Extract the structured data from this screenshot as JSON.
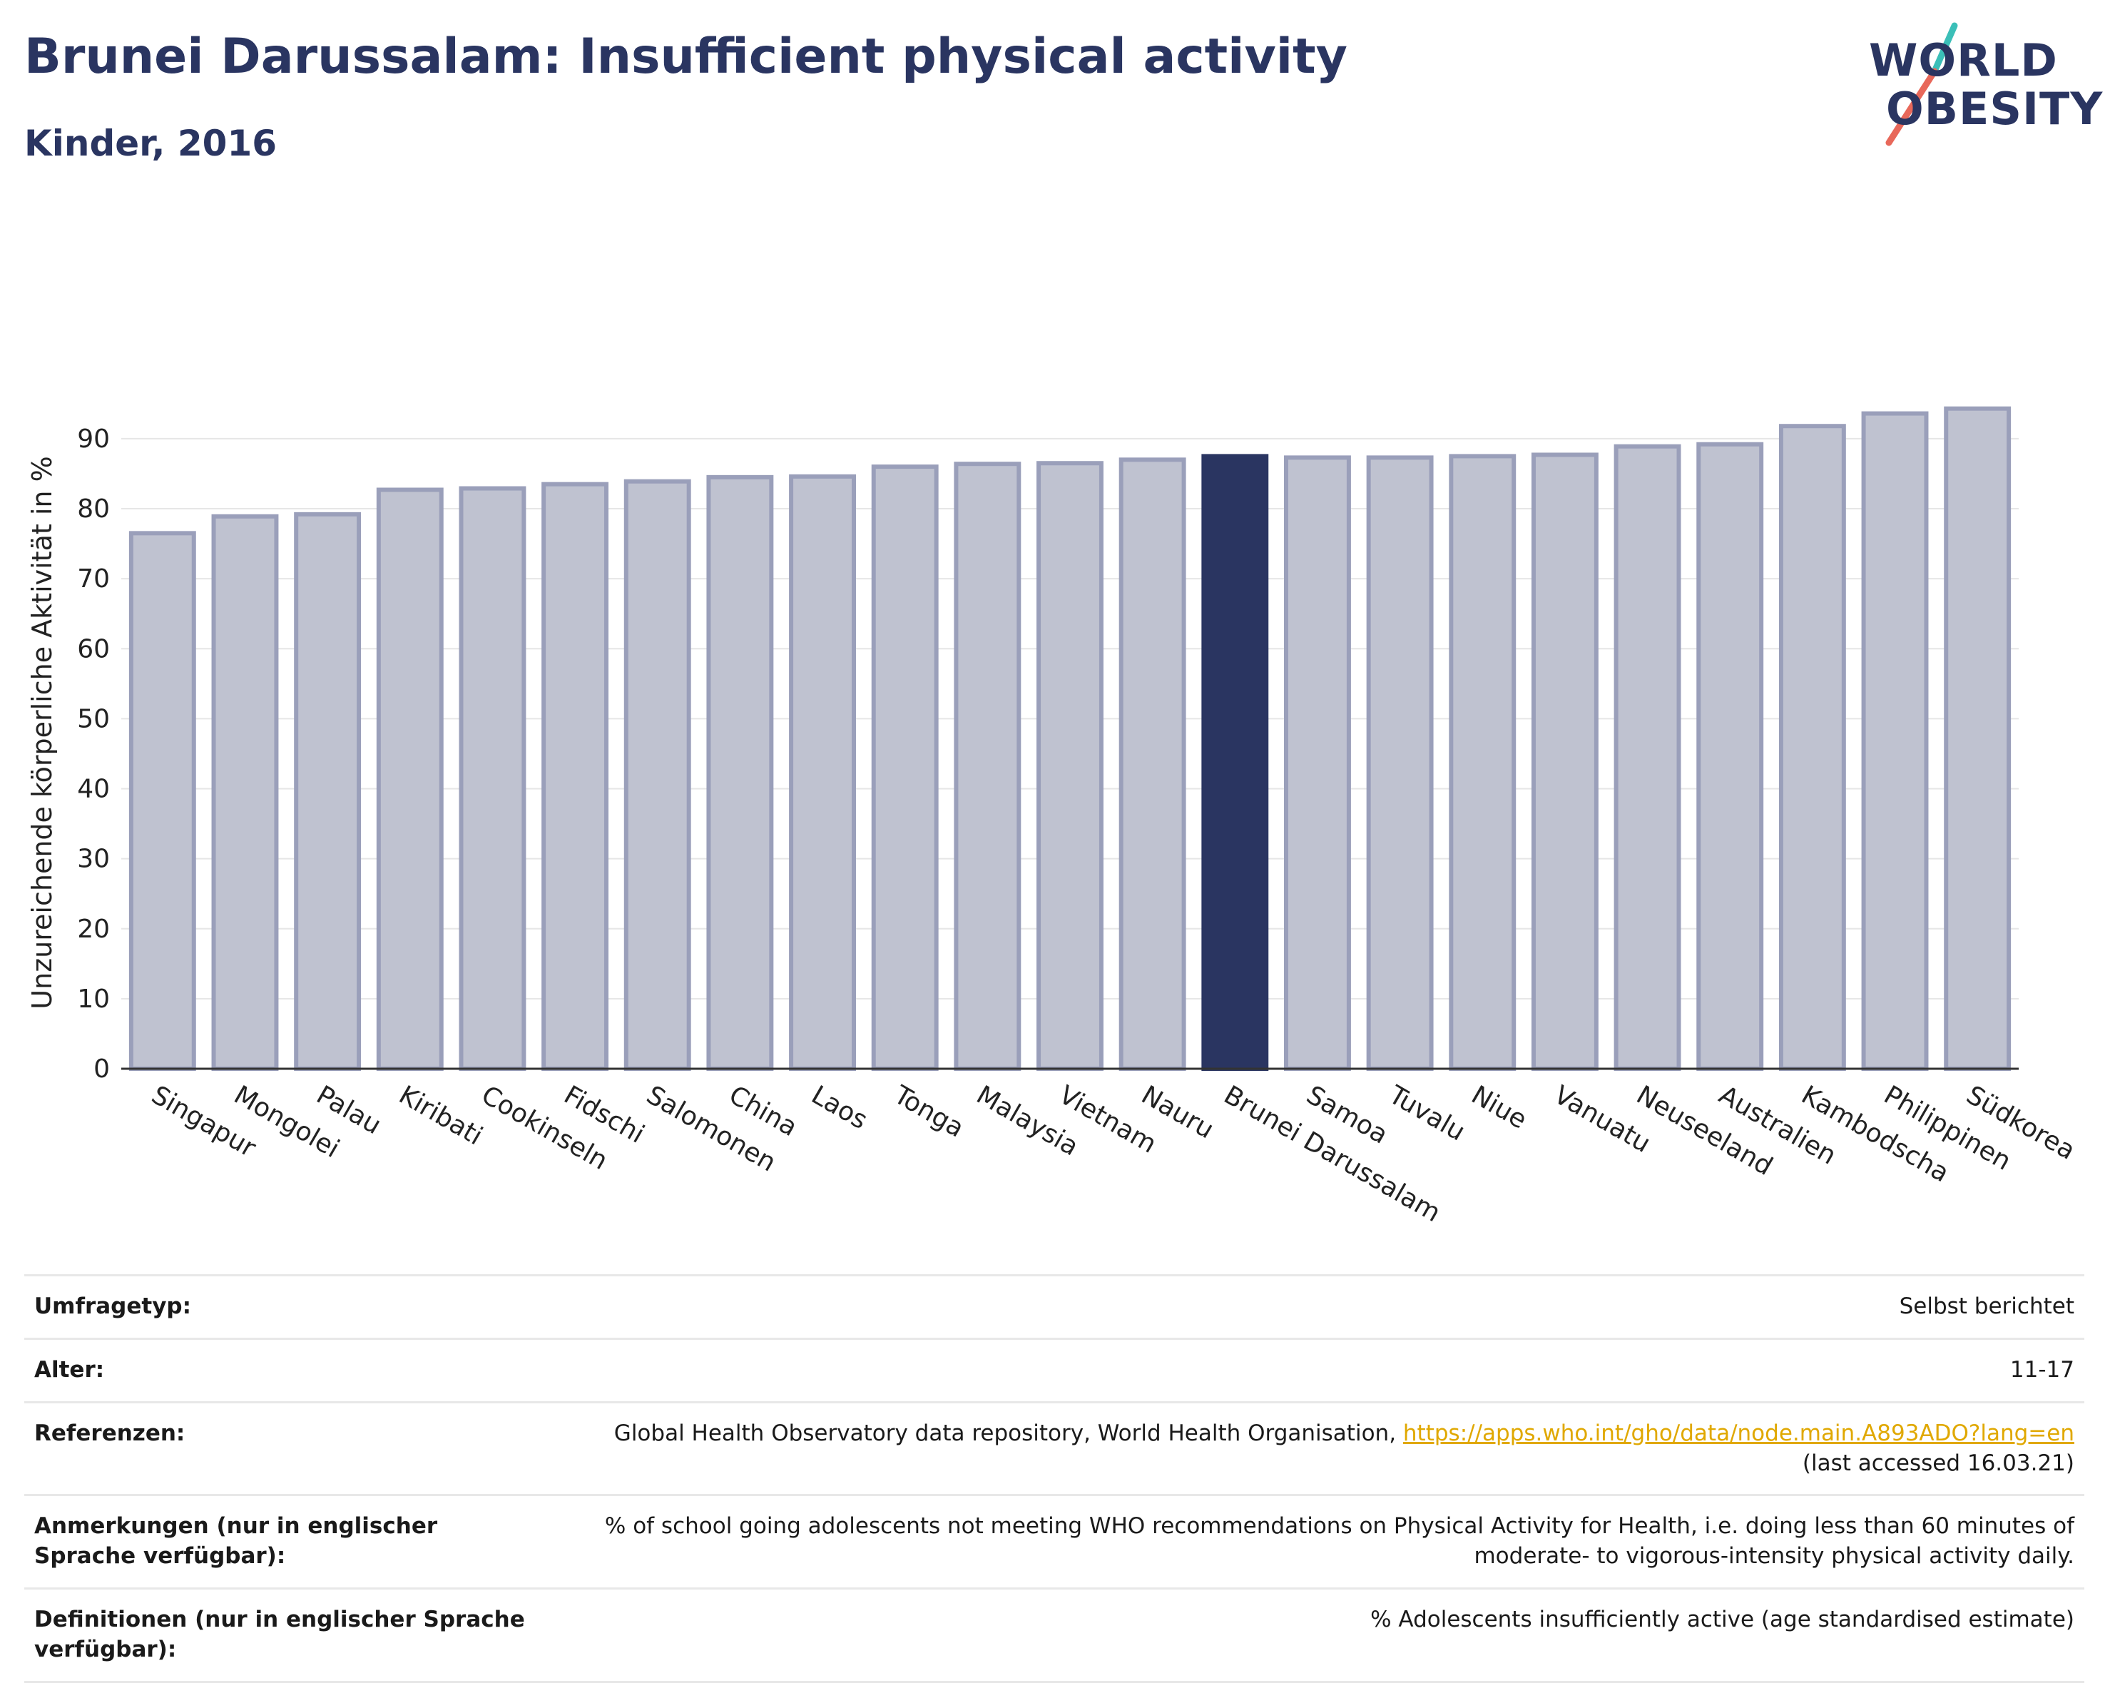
{
  "header": {
    "title": "Brunei Darussalam: Insufficient physical activity",
    "subtitle": "Kinder, 2016"
  },
  "logo": {
    "line1": "WORLD",
    "line2": "OBESITY",
    "colors": {
      "text": "#2a3561",
      "slash_top": "#3bbfb8",
      "slash_bottom": "#e8685a"
    }
  },
  "colors": {
    "bar_fill": "#bfc2d0",
    "bar_stroke": "#9a9fba",
    "highlight": "#2a3561",
    "grid": "#e6e6e6"
  },
  "chart_data": {
    "type": "bar",
    "ylabel": "Unzureichende körperliche Aktivität in %",
    "xlabel": "",
    "ylim": [
      0,
      96
    ],
    "yticks": [
      0,
      10,
      20,
      30,
      40,
      50,
      60,
      70,
      80,
      90
    ],
    "grid": true,
    "highlight": "Brunei Darussalam",
    "categories": [
      "Singapur",
      "Mongolei",
      "Palau",
      "Kiribati",
      "Cookinseln",
      "Fidschi",
      "Salomonen",
      "China",
      "Laos",
      "Tonga",
      "Malaysia",
      "Vietnam",
      "Nauru",
      "Brunei Darussalam",
      "Samoa",
      "Tuvalu",
      "Niue",
      "Vanuatu",
      "Neuseeland",
      "Australien",
      "Kambodscha",
      "Philippinen",
      "Südkorea"
    ],
    "values": [
      76.5,
      78.9,
      79.2,
      82.7,
      82.9,
      83.5,
      83.9,
      84.5,
      84.6,
      86.0,
      86.4,
      86.5,
      87.0,
      87.5,
      87.3,
      87.3,
      87.5,
      87.7,
      88.9,
      89.2,
      91.8,
      93.6,
      94.3
    ]
  },
  "info": {
    "survey_label": "Umfragetyp:",
    "survey_value": "Selbst berichtet",
    "age_label": "Alter:",
    "age_value": "11-17",
    "refs_label": "Referenzen:",
    "refs_text": "Global Health Observatory data repository, World Health Organisation, ",
    "refs_link": "https://apps.who.int/gho/data/node.main.A893ADO?lang=en",
    "refs_accessed": "(last accessed 16.03.21)",
    "notes_label": "Anmerkungen (nur in englischer Sprache verfügbar):",
    "notes_value": "% of school going adolescents not meeting WHO recommendations on Physical Activity for Health, i.e. doing less than 60 minutes of moderate- to vigorous-intensity physical activity daily.",
    "defs_label": "Definitionen (nur in englischer Sprache verfügbar):",
    "defs_value": "% Adolescents insufficiently active (age standardised estimate)"
  }
}
